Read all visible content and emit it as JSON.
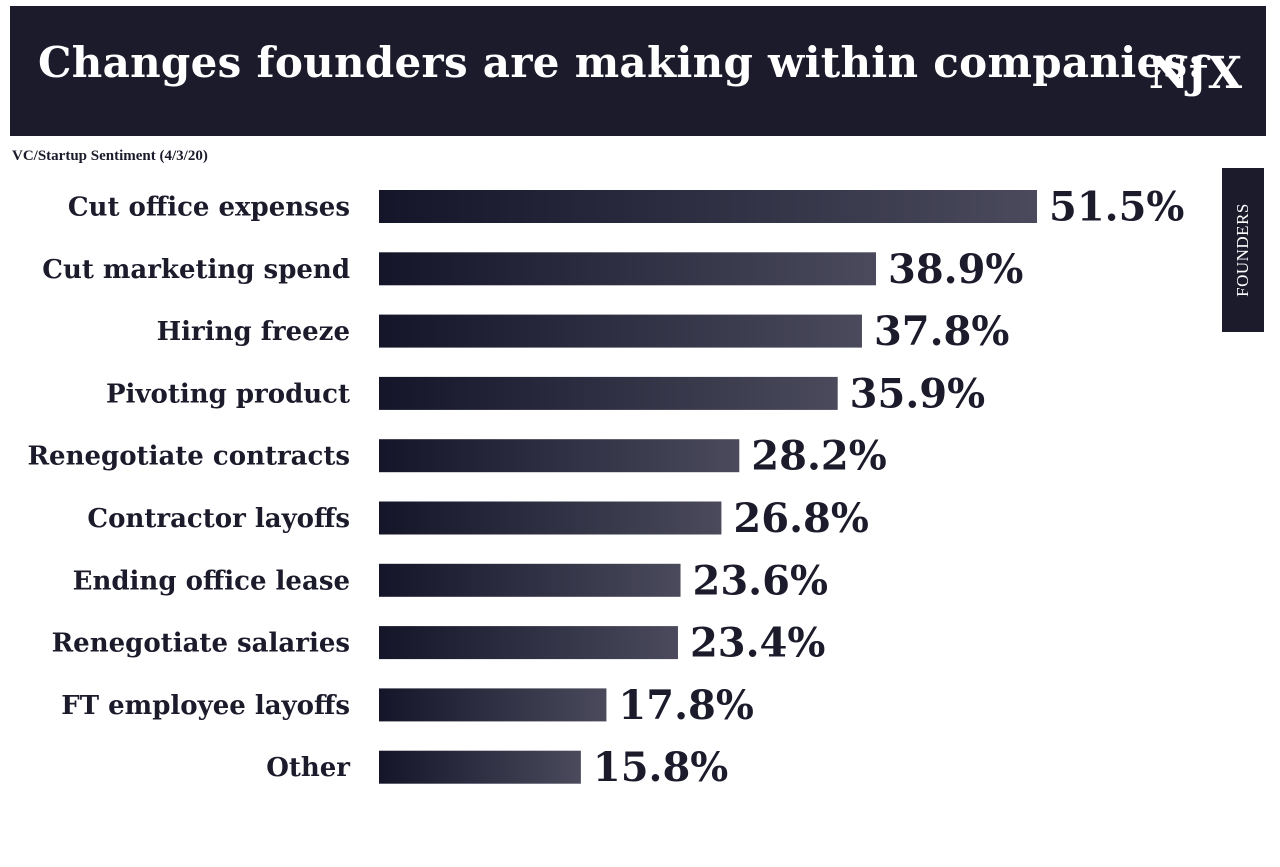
{
  "header": {
    "title": "Changes founders are making within companies:",
    "logo": "NƒX"
  },
  "subtitle": "VC/Startup Sentiment (4/3/20)",
  "side_tab": {
    "label": "FOUNDERS"
  },
  "colors": {
    "bar_dark": "#15152a",
    "bar_light": "#4a4a5c",
    "header_bg": "#1b1b2c",
    "text": "#1b1b2c"
  },
  "chart_data": {
    "type": "bar",
    "orientation": "horizontal",
    "title": "Changes founders are making within companies:",
    "subtitle": "VC/Startup Sentiment (4/3/20)",
    "categories": [
      "Cut office expenses",
      "Cut marketing spend",
      "Hiring freeze",
      "Pivoting product",
      "Renegotiate contracts",
      "Contractor layoffs",
      "Ending office lease",
      "Renegotiate salaries",
      "FT employee layoffs",
      "Other"
    ],
    "values": [
      51.5,
      38.9,
      37.8,
      35.9,
      28.2,
      26.8,
      23.6,
      23.4,
      17.8,
      15.8
    ],
    "value_labels": [
      "51.5%",
      "38.9%",
      "37.8%",
      "35.9%",
      "28.2%",
      "26.8%",
      "23.6%",
      "23.4%",
      "17.8%",
      "15.8%"
    ],
    "xlim": [
      0,
      51.5
    ],
    "grid": false,
    "legend": "none"
  }
}
